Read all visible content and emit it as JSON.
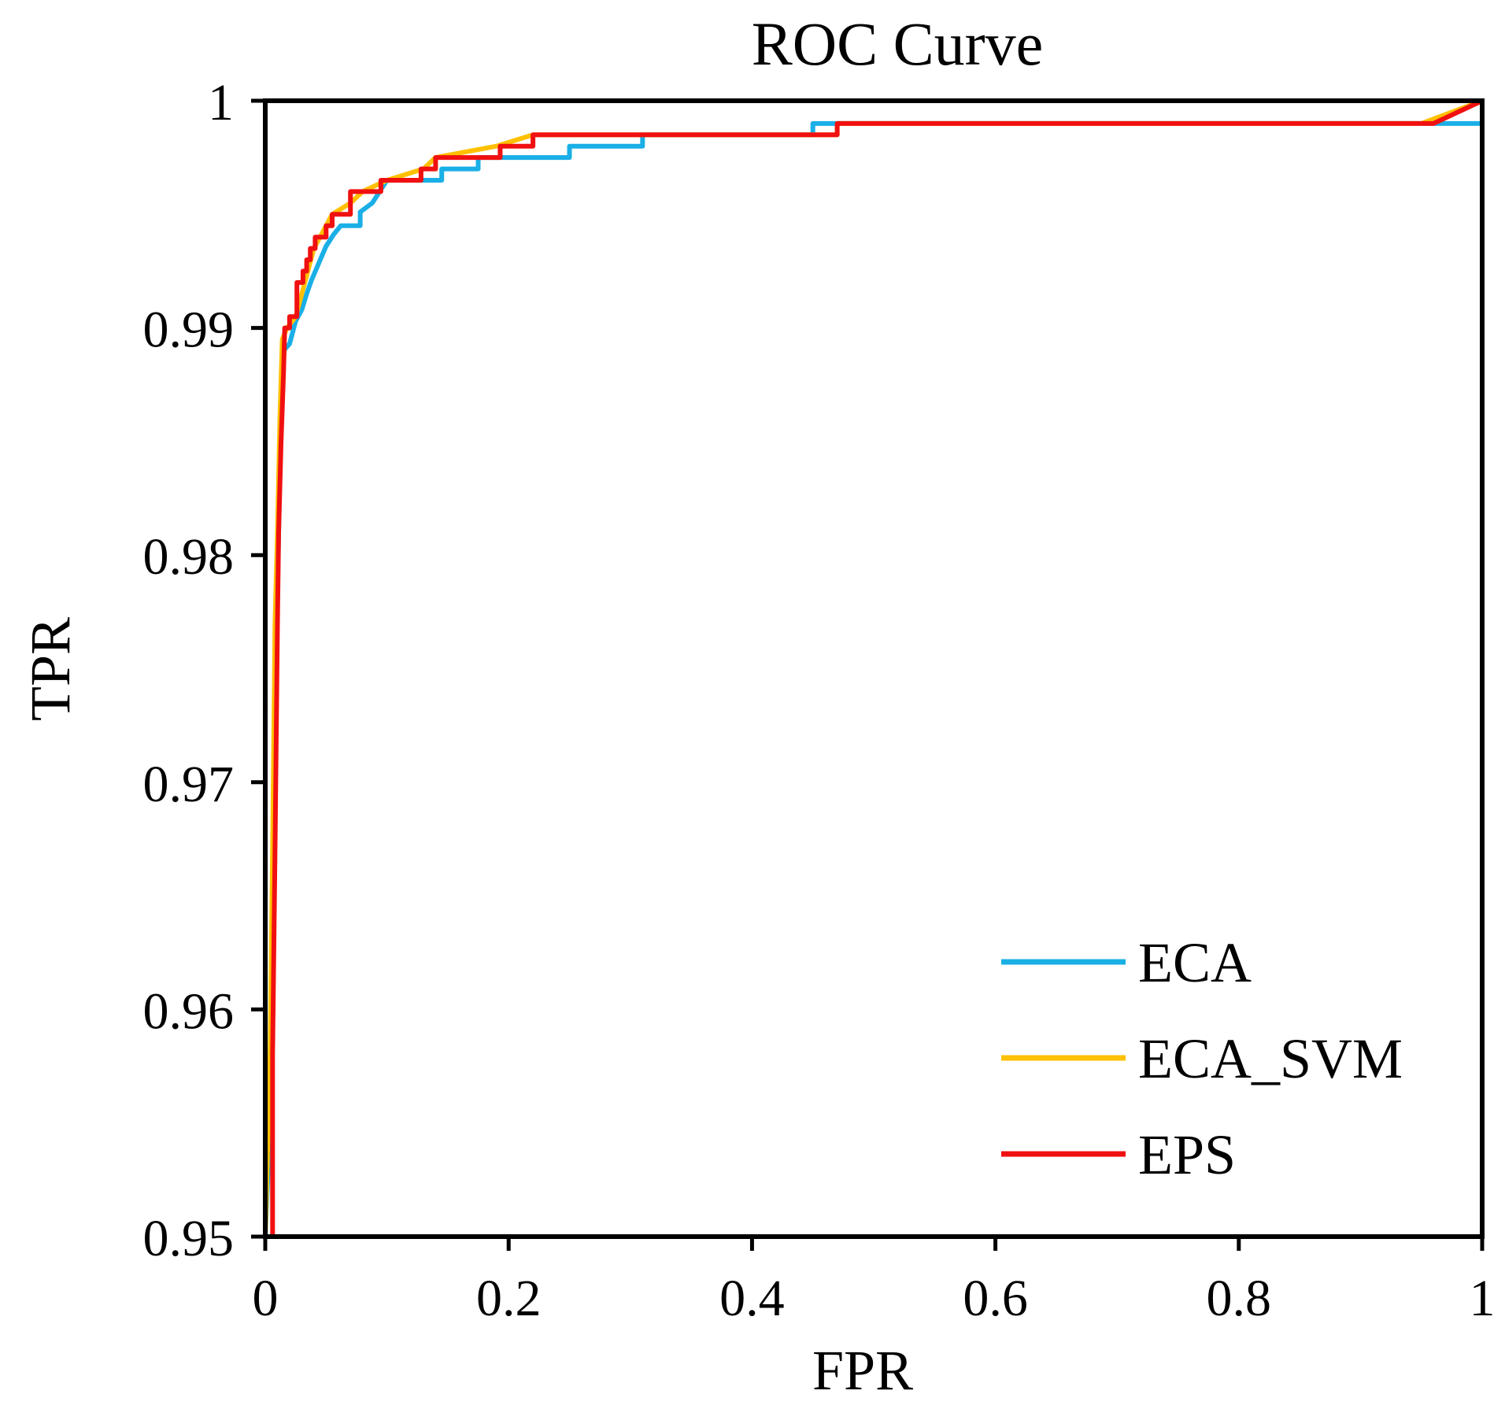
{
  "chart_data": {
    "type": "line",
    "title": "ROC Curve",
    "xlabel": "FPR",
    "ylabel": "TPR",
    "xlim": [
      0,
      1
    ],
    "ylim": [
      0.95,
      1
    ],
    "xticks": [
      "0",
      "0.2",
      "0.4",
      "0.6",
      "0.8",
      "1"
    ],
    "xtick_values": [
      0,
      0.2,
      0.4,
      0.6,
      0.8,
      1
    ],
    "yticks": [
      "0.95",
      "0.96",
      "0.97",
      "0.98",
      "0.99",
      "1"
    ],
    "ytick_values": [
      0.95,
      0.96,
      0.97,
      0.98,
      0.99,
      1
    ],
    "grid": false,
    "legend_position": "bottom-right",
    "series": [
      {
        "name": "ECA",
        "color": "#1AAFE6",
        "points": [
          [
            0.0,
            0.95
          ],
          [
            0.004,
            0.955
          ],
          [
            0.007,
            0.965
          ],
          [
            0.009,
            0.975
          ],
          [
            0.011,
            0.981
          ],
          [
            0.013,
            0.986
          ],
          [
            0.015,
            0.989
          ],
          [
            0.02,
            0.9893
          ],
          [
            0.025,
            0.9903
          ],
          [
            0.03,
            0.9908
          ],
          [
            0.034,
            0.9915
          ],
          [
            0.038,
            0.9921
          ],
          [
            0.042,
            0.9926
          ],
          [
            0.046,
            0.9931
          ],
          [
            0.05,
            0.9936
          ],
          [
            0.056,
            0.9941
          ],
          [
            0.062,
            0.9945
          ],
          [
            0.078,
            0.9945
          ],
          [
            0.078,
            0.9951
          ],
          [
            0.088,
            0.9955
          ],
          [
            0.094,
            0.996
          ],
          [
            0.1,
            0.9965
          ],
          [
            0.13,
            0.9965
          ],
          [
            0.145,
            0.9965
          ],
          [
            0.145,
            0.997
          ],
          [
            0.175,
            0.997
          ],
          [
            0.175,
            0.9975
          ],
          [
            0.25,
            0.9975
          ],
          [
            0.25,
            0.998
          ],
          [
            0.31,
            0.998
          ],
          [
            0.31,
            0.9985
          ],
          [
            0.45,
            0.9985
          ],
          [
            0.45,
            0.999
          ],
          [
            0.99,
            0.999
          ],
          [
            1.0,
            0.999
          ],
          [
            1.0,
            1.0
          ]
        ]
      },
      {
        "name": "ECA_SVM",
        "color": "#FFC000",
        "points": [
          [
            0.0,
            0.95
          ],
          [
            0.004,
            0.958
          ],
          [
            0.006,
            0.967
          ],
          [
            0.008,
            0.977
          ],
          [
            0.01,
            0.981
          ],
          [
            0.012,
            0.986
          ],
          [
            0.014,
            0.9895
          ],
          [
            0.018,
            0.99
          ],
          [
            0.025,
            0.9905
          ],
          [
            0.03,
            0.9915
          ],
          [
            0.035,
            0.9925
          ],
          [
            0.04,
            0.9935
          ],
          [
            0.045,
            0.994
          ],
          [
            0.055,
            0.995
          ],
          [
            0.07,
            0.9955
          ],
          [
            0.08,
            0.996
          ],
          [
            0.1,
            0.9965
          ],
          [
            0.13,
            0.997
          ],
          [
            0.14,
            0.9975
          ],
          [
            0.19,
            0.998
          ],
          [
            0.22,
            0.9985
          ],
          [
            0.47,
            0.9985
          ],
          [
            0.47,
            0.999
          ],
          [
            0.95,
            0.999
          ],
          [
            1.0,
            1.0
          ]
        ]
      },
      {
        "name": "EPS",
        "color": "#F01010",
        "points": [
          [
            0.006,
            0.95
          ],
          [
            0.006,
            0.958
          ],
          [
            0.008,
            0.967
          ],
          [
            0.01,
            0.977
          ],
          [
            0.011,
            0.981
          ],
          [
            0.013,
            0.985
          ],
          [
            0.015,
            0.988
          ],
          [
            0.016,
            0.99
          ],
          [
            0.02,
            0.99
          ],
          [
            0.02,
            0.9905
          ],
          [
            0.026,
            0.9905
          ],
          [
            0.026,
            0.992
          ],
          [
            0.031,
            0.992
          ],
          [
            0.031,
            0.9925
          ],
          [
            0.034,
            0.9925
          ],
          [
            0.034,
            0.993
          ],
          [
            0.037,
            0.993
          ],
          [
            0.037,
            0.9935
          ],
          [
            0.041,
            0.9935
          ],
          [
            0.041,
            0.994
          ],
          [
            0.05,
            0.994
          ],
          [
            0.05,
            0.9945
          ],
          [
            0.055,
            0.9945
          ],
          [
            0.055,
            0.995
          ],
          [
            0.07,
            0.995
          ],
          [
            0.07,
            0.996
          ],
          [
            0.095,
            0.996
          ],
          [
            0.095,
            0.9965
          ],
          [
            0.128,
            0.9965
          ],
          [
            0.128,
            0.997
          ],
          [
            0.14,
            0.997
          ],
          [
            0.14,
            0.9975
          ],
          [
            0.193,
            0.9975
          ],
          [
            0.193,
            0.998
          ],
          [
            0.22,
            0.998
          ],
          [
            0.22,
            0.9985
          ],
          [
            0.47,
            0.9985
          ],
          [
            0.47,
            0.999
          ],
          [
            0.96,
            0.999
          ],
          [
            1.0,
            1.0
          ]
        ]
      }
    ]
  }
}
